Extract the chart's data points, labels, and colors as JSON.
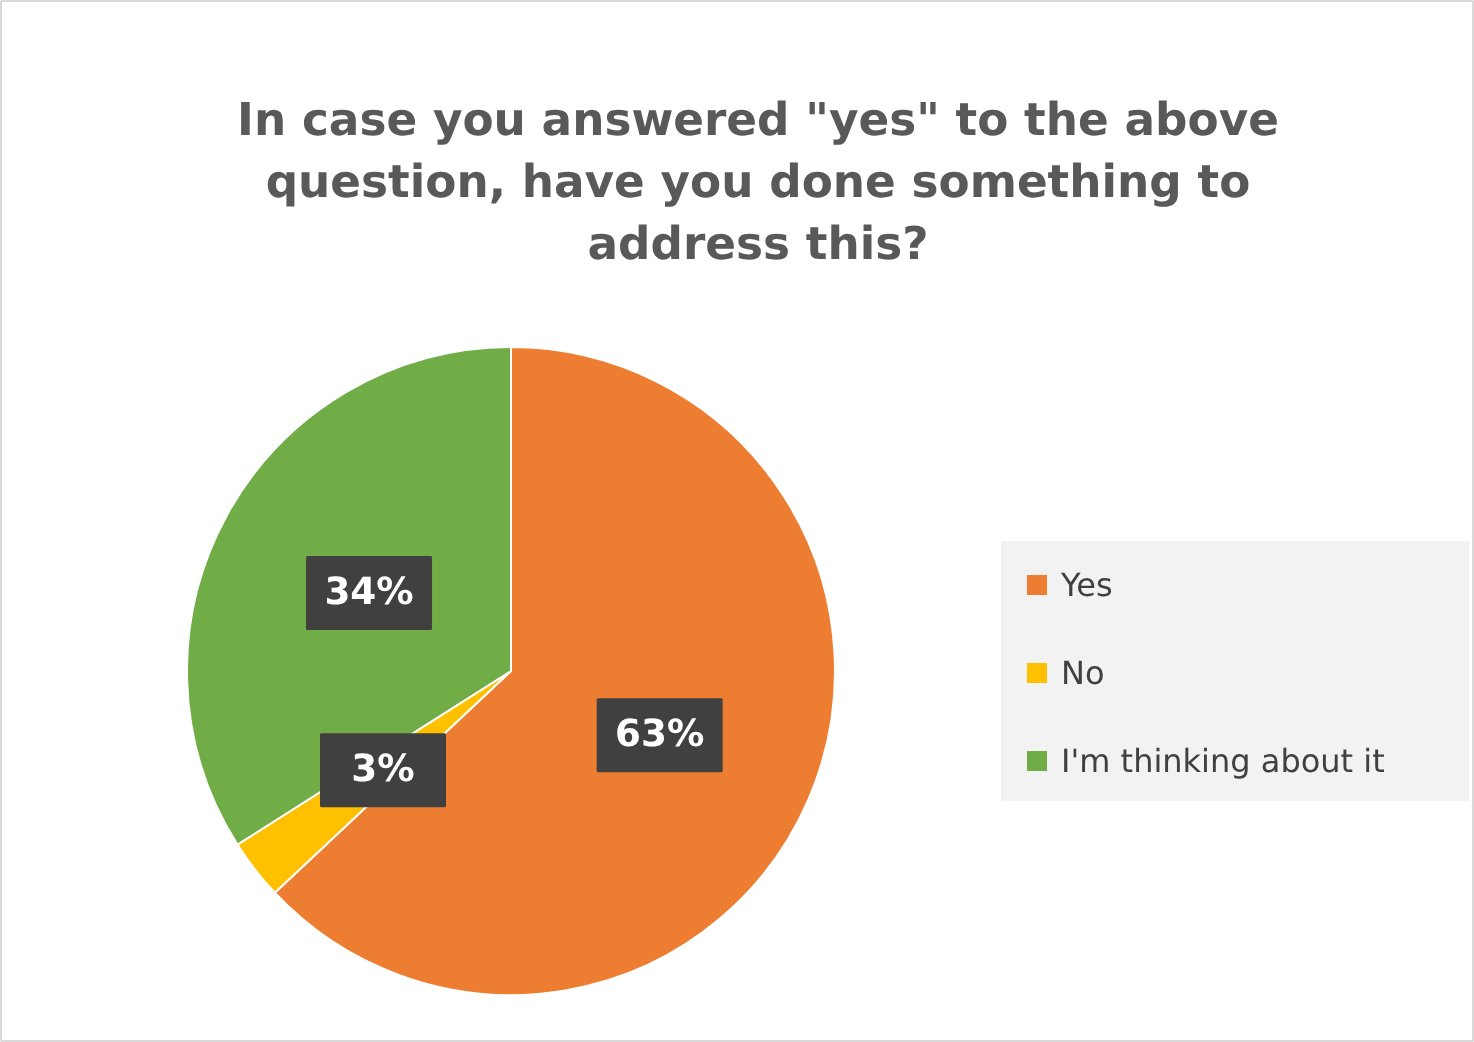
{
  "chart_data": {
    "type": "pie",
    "title": "In case you answered \"yes\" to the above question, have you done something to address this?",
    "categories": [
      "Yes",
      "No",
      "I'm thinking about it"
    ],
    "values": [
      63,
      3,
      34
    ],
    "colors": [
      "#ed7d31",
      "#ffc000",
      "#70ad47"
    ],
    "value_labels": [
      "63%",
      "3%",
      "34%"
    ],
    "legend": "right"
  }
}
